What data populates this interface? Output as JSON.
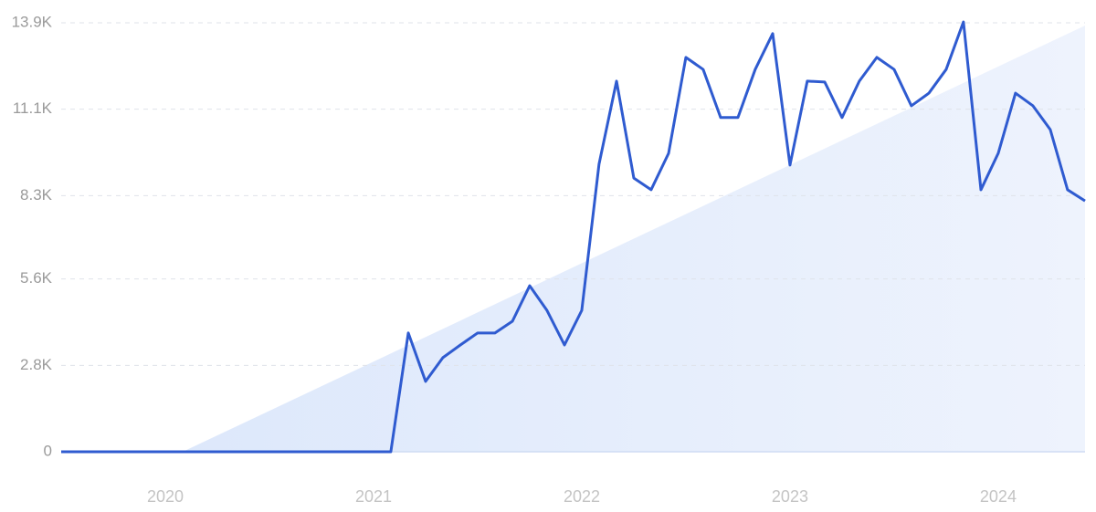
{
  "chart_data": {
    "type": "line",
    "x": [
      2019.5,
      2019.583,
      2019.667,
      2019.75,
      2019.833,
      2019.917,
      2020,
      2020.083,
      2020.167,
      2020.25,
      2020.333,
      2020.417,
      2020.5,
      2020.583,
      2020.667,
      2020.75,
      2020.833,
      2020.917,
      2021,
      2021.083,
      2021.167,
      2021.25,
      2021.333,
      2021.417,
      2021.5,
      2021.583,
      2021.667,
      2021.75,
      2021.833,
      2021.917,
      2022,
      2022.083,
      2022.167,
      2022.25,
      2022.333,
      2022.417,
      2022.5,
      2022.583,
      2022.667,
      2022.75,
      2022.833,
      2022.917,
      2023,
      2023.083,
      2023.167,
      2023.25,
      2023.333,
      2023.417,
      2023.5,
      2023.583,
      2023.667,
      2023.75,
      2023.833,
      2023.917,
      2024,
      2024.083,
      2024.167,
      2024.25,
      2024.333,
      2024.417
    ],
    "series": [
      {
        "color": "#2f5bd0",
        "values": [
          0,
          0,
          0,
          0,
          0,
          0,
          0,
          0,
          0,
          0,
          0,
          0,
          0,
          0,
          0,
          0,
          0,
          0,
          0,
          0,
          3850,
          2280,
          3050,
          3460,
          3850,
          3850,
          4230,
          5380,
          4580,
          3460,
          4580,
          9320,
          12010,
          8870,
          8490,
          9670,
          12780,
          12390,
          10830,
          10830,
          12390,
          13550,
          9290,
          12010,
          11980,
          10830,
          12010,
          12780,
          12390,
          11210,
          11620,
          12390,
          13930,
          8490,
          9670,
          11620,
          11210,
          10440,
          8490,
          8130
        ]
      }
    ],
    "xlim": [
      2019.5,
      2024.417
    ],
    "xticks": [
      2020,
      2021,
      2022,
      2023,
      2024
    ],
    "ylim": [
      0,
      13900
    ],
    "yticks": [
      0,
      {
        "value": 2800,
        "label": "2.8K"
      },
      {
        "value": 5600,
        "label": "5.6K"
      },
      {
        "value": 8300,
        "label": "8.3K"
      },
      {
        "value": 11100,
        "label": "11.1K"
      },
      {
        "value": 13900,
        "label": "13.9K"
      }
    ],
    "grid": true
  }
}
